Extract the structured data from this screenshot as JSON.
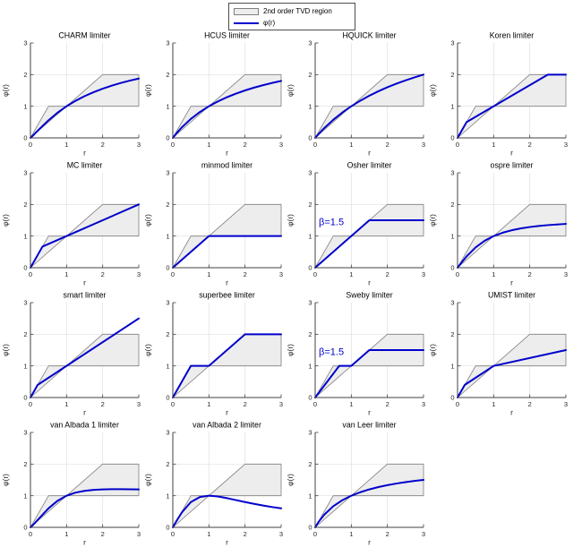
{
  "colors": {
    "line": "#0000cc",
    "region_fill": "#ededed",
    "region_edge": "#7f7f7f",
    "grid": "#e0e0e0",
    "axis": "#404040",
    "tick_label": "#262626",
    "title": "#000000",
    "annotation": "#0000cc"
  },
  "chart_data": {
    "type": "line",
    "layout": {
      "rows": 4,
      "cols": 4,
      "filled_last_row": 3
    },
    "xlabel": "r",
    "ylabel": "φ(r)",
    "xlim": [
      0,
      3
    ],
    "ylim": [
      0,
      3
    ],
    "xticks": [
      0,
      1,
      2,
      3
    ],
    "yticks": [
      0,
      1,
      2,
      3
    ],
    "grid": true,
    "legend": {
      "position": "top-center",
      "entries": [
        "2nd order TVD region",
        "φ(r)"
      ]
    },
    "tvd_region": [
      [
        0,
        0
      ],
      [
        0.5,
        1
      ],
      [
        1,
        1
      ],
      [
        2,
        2
      ],
      [
        3,
        2
      ],
      [
        3,
        1
      ],
      [
        1,
        1
      ]
    ],
    "subplots": [
      {
        "title": "CHARM limiter",
        "points": [
          [
            0,
            0
          ],
          [
            0.1,
            0.107
          ],
          [
            0.25,
            0.28
          ],
          [
            0.5,
            0.556
          ],
          [
            0.75,
            0.796
          ],
          [
            1,
            1
          ],
          [
            1.25,
            1.173
          ],
          [
            1.5,
            1.32
          ],
          [
            1.75,
            1.446
          ],
          [
            2,
            1.556
          ],
          [
            2.25,
            1.651
          ],
          [
            2.5,
            1.735
          ],
          [
            2.75,
            1.809
          ],
          [
            3,
            1.875
          ]
        ]
      },
      {
        "title": "HCUS limiter",
        "points": [
          [
            0,
            0
          ],
          [
            0.1,
            0.143
          ],
          [
            0.25,
            0.333
          ],
          [
            0.5,
            0.6
          ],
          [
            0.75,
            0.818
          ],
          [
            1,
            1
          ],
          [
            1.25,
            1.154
          ],
          [
            1.5,
            1.286
          ],
          [
            1.75,
            1.4
          ],
          [
            2,
            1.5
          ],
          [
            2.25,
            1.588
          ],
          [
            2.5,
            1.667
          ],
          [
            2.75,
            1.737
          ],
          [
            3,
            1.8
          ]
        ]
      },
      {
        "title": "HQUICK limiter",
        "points": [
          [
            0,
            0
          ],
          [
            0.1,
            0.129
          ],
          [
            0.25,
            0.308
          ],
          [
            0.5,
            0.571
          ],
          [
            0.75,
            0.8
          ],
          [
            1,
            1
          ],
          [
            1.25,
            1.176
          ],
          [
            1.5,
            1.333
          ],
          [
            1.75,
            1.474
          ],
          [
            2,
            1.6
          ],
          [
            2.25,
            1.714
          ],
          [
            2.5,
            1.818
          ],
          [
            2.75,
            1.913
          ],
          [
            3,
            2
          ]
        ]
      },
      {
        "title": "Koren limiter",
        "points": [
          [
            0,
            0
          ],
          [
            0.25,
            0.5
          ],
          [
            2.5,
            2
          ],
          [
            3,
            2
          ]
        ]
      },
      {
        "title": "MC limiter",
        "points": [
          [
            0,
            0
          ],
          [
            0.333,
            0.667
          ],
          [
            3,
            2
          ]
        ]
      },
      {
        "title": "minmod limiter",
        "points": [
          [
            0,
            0
          ],
          [
            1,
            1
          ],
          [
            3,
            1
          ]
        ]
      },
      {
        "title": "Osher limiter",
        "annotation": "β=1.5",
        "points": [
          [
            0,
            0
          ],
          [
            1.5,
            1.5
          ],
          [
            3,
            1.5
          ]
        ]
      },
      {
        "title": "ospre limiter",
        "points": [
          [
            0,
            0
          ],
          [
            0.1,
            0.149
          ],
          [
            0.25,
            0.357
          ],
          [
            0.5,
            0.643
          ],
          [
            0.75,
            0.851
          ],
          [
            1,
            1
          ],
          [
            1.25,
            1.107
          ],
          [
            1.5,
            1.184
          ],
          [
            1.75,
            1.242
          ],
          [
            2,
            1.286
          ],
          [
            2.25,
            1.32
          ],
          [
            2.5,
            1.346
          ],
          [
            2.75,
            1.367
          ],
          [
            3,
            1.385
          ]
        ]
      },
      {
        "title": "smart limiter",
        "points": [
          [
            0,
            0
          ],
          [
            0.2,
            0.4
          ],
          [
            3,
            2.5
          ]
        ]
      },
      {
        "title": "superbee limiter",
        "points": [
          [
            0,
            0
          ],
          [
            0.5,
            1
          ],
          [
            1,
            1
          ],
          [
            2,
            2
          ],
          [
            3,
            2
          ]
        ]
      },
      {
        "title": "Sweby limiter",
        "annotation": "β=1.5",
        "points": [
          [
            0,
            0
          ],
          [
            0.667,
            1
          ],
          [
            1,
            1
          ],
          [
            1.5,
            1.5
          ],
          [
            3,
            1.5
          ]
        ]
      },
      {
        "title": "UMIST limiter",
        "points": [
          [
            0,
            0
          ],
          [
            0.2,
            0.4
          ],
          [
            1,
            1
          ],
          [
            3,
            1.5
          ]
        ]
      },
      {
        "title": "van Albada 1 limiter",
        "points": [
          [
            0,
            0
          ],
          [
            0.1,
            0.109
          ],
          [
            0.25,
            0.294
          ],
          [
            0.5,
            0.6
          ],
          [
            0.75,
            0.84
          ],
          [
            1,
            1
          ],
          [
            1.25,
            1.098
          ],
          [
            1.5,
            1.154
          ],
          [
            1.75,
            1.185
          ],
          [
            2,
            1.2
          ],
          [
            2.25,
            1.206
          ],
          [
            2.5,
            1.207
          ],
          [
            2.75,
            1.204
          ],
          [
            3,
            1.2
          ]
        ]
      },
      {
        "title": "van Albada 2 limiter",
        "points": [
          [
            0,
            0
          ],
          [
            0.1,
            0.198
          ],
          [
            0.25,
            0.471
          ],
          [
            0.5,
            0.8
          ],
          [
            0.75,
            0.96
          ],
          [
            1,
            1
          ],
          [
            1.25,
            0.976
          ],
          [
            1.5,
            0.923
          ],
          [
            1.75,
            0.862
          ],
          [
            2,
            0.8
          ],
          [
            2.25,
            0.742
          ],
          [
            2.5,
            0.69
          ],
          [
            2.75,
            0.642
          ],
          [
            3,
            0.6
          ]
        ]
      },
      {
        "title": "van Leer limiter",
        "points": [
          [
            0,
            0
          ],
          [
            0.1,
            0.182
          ],
          [
            0.25,
            0.4
          ],
          [
            0.5,
            0.667
          ],
          [
            0.75,
            0.857
          ],
          [
            1,
            1
          ],
          [
            1.25,
            1.111
          ],
          [
            1.5,
            1.2
          ],
          [
            1.75,
            1.273
          ],
          [
            2,
            1.333
          ],
          [
            2.25,
            1.385
          ],
          [
            2.5,
            1.429
          ],
          [
            2.75,
            1.467
          ],
          [
            3,
            1.5
          ]
        ]
      }
    ]
  }
}
